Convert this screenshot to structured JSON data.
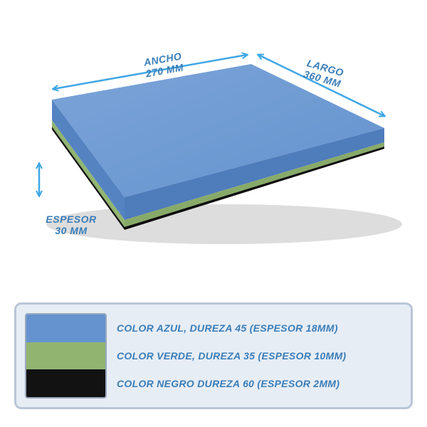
{
  "diagram": {
    "type": "infographic",
    "background_color": "#ffffff",
    "label_color": "#3a7db8",
    "arrow_color": "#3fa7e6",
    "dimensions": {
      "ancho": {
        "title": "ANCHO",
        "value": "270 MM"
      },
      "largo": {
        "title": "LARGO",
        "value": "360 MM"
      },
      "espesor": {
        "title": "ESPESOR",
        "value": "30 MM"
      }
    },
    "slab": {
      "top_fill": "#6593cf",
      "top_highlight": "#7ba4d8",
      "front_blue": "#5583c2",
      "front_green": "#91b571",
      "front_black": "#121212",
      "side_blue": "#4f7cbb",
      "side_green": "#88aa69",
      "side_black": "#0c0c0c",
      "shadow": "#00000022"
    }
  },
  "legend": {
    "panel_bg": "#e7edf5",
    "panel_border": "#b9c6d6",
    "swatch_border": "#98a8bb",
    "text_color": "#3a7db8",
    "rows": [
      {
        "color": "#6593cf",
        "label": "COLOR AZUL, DUREZA 45 (ESPESOR 18MM)"
      },
      {
        "color": "#91b571",
        "label": "COLOR VERDE, DUREZA 35 (ESPESOR 10MM)"
      },
      {
        "color": "#121212",
        "label": "COLOR NEGRO DUREZA 60 (ESPESOR 2MM)"
      }
    ]
  }
}
